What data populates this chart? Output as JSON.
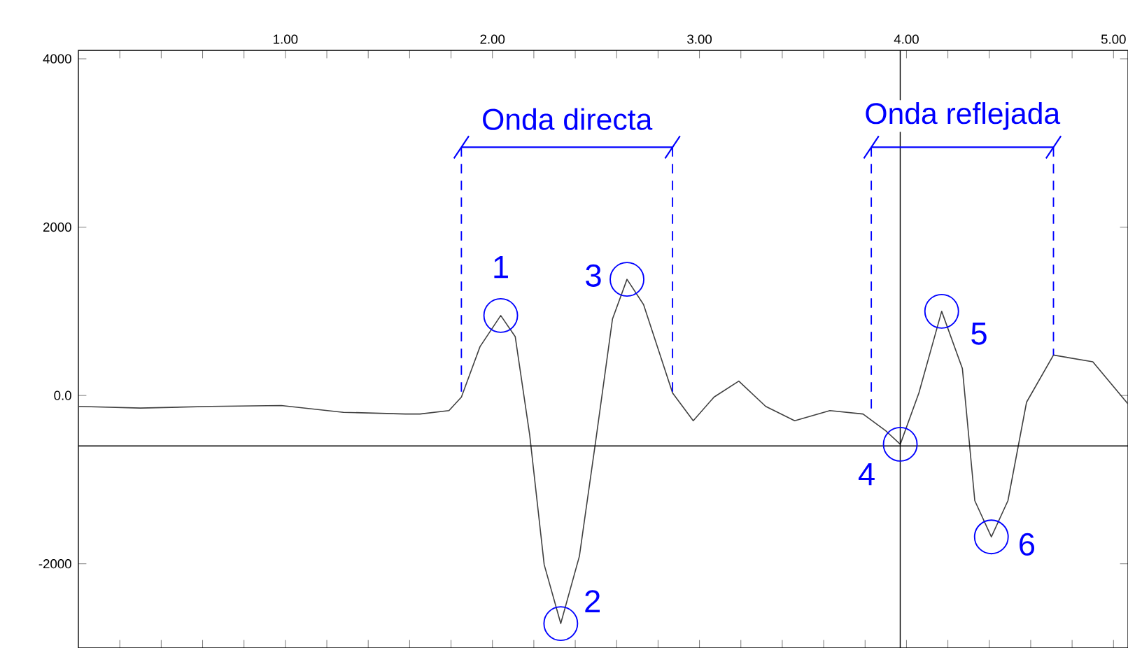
{
  "chart_data": {
    "type": "line",
    "xlim": [
      0,
      5.07
    ],
    "ylim": [
      -3000,
      4100
    ],
    "xticks": [
      {
        "value": 0.2,
        "label": null
      },
      {
        "value": 0.4,
        "label": null
      },
      {
        "value": 0.6,
        "label": null
      },
      {
        "value": 0.8,
        "label": null
      },
      {
        "value": 1,
        "label": "1.00"
      },
      {
        "value": 1.2,
        "label": null
      },
      {
        "value": 1.4,
        "label": null
      },
      {
        "value": 1.6,
        "label": null
      },
      {
        "value": 1.8,
        "label": null
      },
      {
        "value": 2,
        "label": "2.00"
      },
      {
        "value": 2.2,
        "label": null
      },
      {
        "value": 2.4,
        "label": null
      },
      {
        "value": 2.6,
        "label": null
      },
      {
        "value": 2.8,
        "label": null
      },
      {
        "value": 3,
        "label": "3.00"
      },
      {
        "value": 3.2,
        "label": null
      },
      {
        "value": 3.4,
        "label": null
      },
      {
        "value": 3.6,
        "label": null
      },
      {
        "value": 3.8,
        "label": null
      },
      {
        "value": 4,
        "label": "4.00"
      },
      {
        "value": 4.2,
        "label": null
      },
      {
        "value": 4.4,
        "label": null
      },
      {
        "value": 4.6,
        "label": null
      },
      {
        "value": 4.8,
        "label": null
      },
      {
        "value": 5,
        "label": "5.00"
      }
    ],
    "yticks": [
      4000,
      2000,
      {
        "value": 0,
        "label": "0.0"
      },
      -2000
    ],
    "series": [
      {
        "color": "#404040",
        "x": [
          0.0,
          0.3,
          0.64,
          0.98,
          1.28,
          1.58,
          1.65,
          1.79,
          1.85,
          1.94,
          2.04,
          2.11,
          2.18,
          2.25,
          2.33,
          2.42,
          2.5,
          2.58,
          2.65,
          2.73,
          2.87,
          2.97,
          3.07,
          3.19,
          3.32,
          3.46,
          3.63,
          3.79,
          3.9,
          3.97,
          4.06,
          4.17,
          4.27,
          4.33,
          4.41,
          4.49,
          4.58,
          4.71,
          4.9,
          5.07
        ],
        "values": [
          -130,
          -150,
          -130,
          -120,
          -200,
          -220,
          -220,
          -180,
          -20,
          580,
          950,
          700,
          -470,
          -2010,
          -2710,
          -1910,
          -520,
          910,
          1380,
          1080,
          30,
          -300,
          -20,
          170,
          -130,
          -300,
          -180,
          -220,
          -420,
          -580,
          30,
          1000,
          320,
          -1250,
          -1680,
          -1250,
          -80,
          480,
          400,
          -100
        ]
      }
    ],
    "ref_lines": [
      {
        "axis": "y",
        "value": -600,
        "color": "#000000"
      },
      {
        "axis": "x",
        "value": 3.97,
        "color": "#000000"
      },
      {
        "axis": "x",
        "value": 1.85,
        "color": "#0000ff",
        "line_style": "dashed"
      },
      {
        "axis": "x",
        "value": 2.87,
        "color": "#0000ff",
        "line_style": "dashed"
      },
      {
        "axis": "x",
        "value": 3.83,
        "color": "#0000ff",
        "line_style": "dashed"
      },
      {
        "axis": "x",
        "value": 4.71,
        "color": "#0000ff",
        "line_style": "dashed"
      }
    ],
    "annotations": [
      "Onda directa",
      "Onda reflejada",
      {
        "text": "1",
        "x": 2.04,
        "y": 950
      },
      {
        "text": "2",
        "x": 2.33,
        "y": -2710
      },
      {
        "text": "3",
        "x": 2.65,
        "y": 1380
      },
      {
        "text": "4",
        "x": 3.97,
        "y": -580
      },
      {
        "text": "5",
        "x": 4.17,
        "y": 1000
      },
      {
        "text": "6",
        "x": 4.41,
        "y": -1680
      }
    ]
  }
}
